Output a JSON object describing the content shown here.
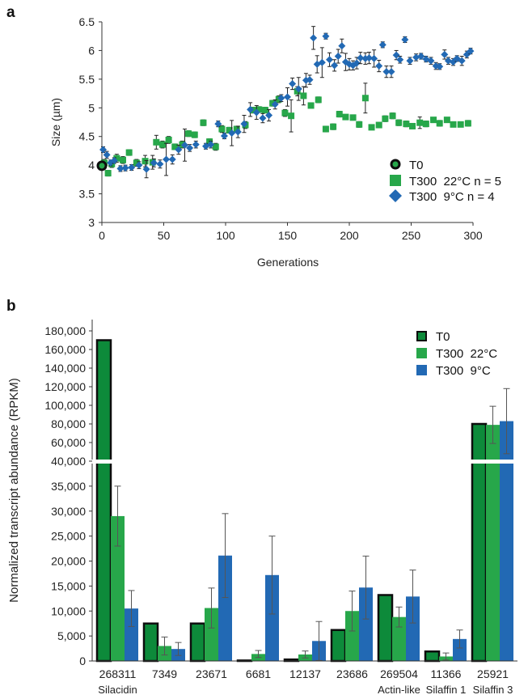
{
  "panel_labels": {
    "a": "a",
    "b": "b"
  },
  "chart_data": [
    {
      "id": "a",
      "type": "scatter",
      "xlabel": "Generations",
      "ylabel": "Size (µm)",
      "xlim": [
        0,
        300
      ],
      "ylim": [
        3,
        6.5
      ],
      "xticks": [
        "0",
        "50",
        "100",
        "150",
        "200",
        "250",
        "300"
      ],
      "yticks": [
        "3",
        "3.5",
        "4",
        "4.5",
        "5",
        "5.5",
        "6",
        "6.5"
      ],
      "legend_position": "right",
      "grid": false,
      "colors": {
        "T0": "#0d0d0d",
        "T300_22": "#27a74a",
        "T300_9": "#2269b4",
        "error": "#222222"
      },
      "series": [
        {
          "name": "T0",
          "marker": "circle",
          "points": [
            {
              "x": 0,
              "y": 3.99,
              "err": 0.03
            }
          ]
        },
        {
          "name": "T300  22°C n = 5",
          "marker": "square",
          "points": [
            {
              "x": 2,
              "y": 4.04,
              "err": 0.06
            },
            {
              "x": 5,
              "y": 3.86,
              "err": 0.05
            },
            {
              "x": 8,
              "y": 4.02,
              "err": 0.06
            },
            {
              "x": 12,
              "y": 4.12,
              "err": 0.07
            },
            {
              "x": 17,
              "y": 4.09,
              "err": 0.06
            },
            {
              "x": 22,
              "y": 4.22,
              "err": 0.05
            },
            {
              "x": 28,
              "y": 4.04,
              "err": 0.06
            },
            {
              "x": 35,
              "y": 4.07,
              "err": 0.1
            },
            {
              "x": 41,
              "y": 4.05,
              "err": 0.12
            },
            {
              "x": 44,
              "y": 4.4,
              "err": 0.12
            },
            {
              "x": 49,
              "y": 4.36,
              "err": 0.06
            },
            {
              "x": 54,
              "y": 4.44,
              "err": 0.06
            },
            {
              "x": 59,
              "y": 4.32,
              "err": 0.05
            },
            {
              "x": 65,
              "y": 4.36,
              "err": 0.06
            },
            {
              "x": 70,
              "y": 4.55,
              "err": 0.05
            },
            {
              "x": 75,
              "y": 4.53,
              "err": 0.05
            },
            {
              "x": 82,
              "y": 4.74,
              "err": 0.05
            },
            {
              "x": 87,
              "y": 4.41,
              "err": 0.05
            },
            {
              "x": 92,
              "y": 4.32,
              "err": 0.06
            },
            {
              "x": 97,
              "y": 4.63,
              "err": 0.06
            },
            {
              "x": 103,
              "y": 4.61,
              "err": 0.05
            },
            {
              "x": 109,
              "y": 4.63,
              "err": 0.05
            },
            {
              "x": 116,
              "y": 4.7,
              "err": 0.06
            },
            {
              "x": 122,
              "y": 4.96,
              "err": 0.05
            },
            {
              "x": 127,
              "y": 4.97,
              "err": 0.05
            },
            {
              "x": 132,
              "y": 4.96,
              "err": 0.05
            },
            {
              "x": 138,
              "y": 5.08,
              "err": 0.05
            },
            {
              "x": 143,
              "y": 5.15,
              "err": 0.06
            },
            {
              "x": 148,
              "y": 4.91,
              "err": 0.06
            },
            {
              "x": 153,
              "y": 4.86,
              "err": 0.28
            },
            {
              "x": 158,
              "y": 5.29,
              "err": 0.08
            },
            {
              "x": 163,
              "y": 5.21,
              "err": 0.16
            },
            {
              "x": 169,
              "y": 5.04,
              "err": 0.04
            },
            {
              "x": 175,
              "y": 5.14,
              "err": 0.05
            },
            {
              "x": 181,
              "y": 4.63,
              "err": 0.05
            },
            {
              "x": 187,
              "y": 4.67,
              "err": 0.05
            },
            {
              "x": 192,
              "y": 4.89,
              "err": 0.05
            },
            {
              "x": 197,
              "y": 4.84,
              "err": 0.04
            },
            {
              "x": 203,
              "y": 4.83,
              "err": 0.04
            },
            {
              "x": 208,
              "y": 4.71,
              "err": 0.05
            },
            {
              "x": 213,
              "y": 5.17,
              "err": 0.26
            },
            {
              "x": 218,
              "y": 4.66,
              "err": 0.04
            },
            {
              "x": 224,
              "y": 4.7,
              "err": 0.04
            },
            {
              "x": 229,
              "y": 4.81,
              "err": 0.05
            },
            {
              "x": 235,
              "y": 4.86,
              "err": 0.05
            },
            {
              "x": 240,
              "y": 4.74,
              "err": 0.05
            },
            {
              "x": 246,
              "y": 4.72,
              "err": 0.05
            },
            {
              "x": 251,
              "y": 4.68,
              "err": 0.04
            },
            {
              "x": 257,
              "y": 4.74,
              "err": 0.1
            },
            {
              "x": 262,
              "y": 4.72,
              "err": 0.05
            },
            {
              "x": 268,
              "y": 4.79,
              "err": 0.04
            },
            {
              "x": 273,
              "y": 4.73,
              "err": 0.05
            },
            {
              "x": 279,
              "y": 4.79,
              "err": 0.04
            },
            {
              "x": 284,
              "y": 4.71,
              "err": 0.04
            },
            {
              "x": 290,
              "y": 4.71,
              "err": 0.04
            },
            {
              "x": 296,
              "y": 4.73,
              "err": 0.05
            }
          ]
        },
        {
          "name": "T300  9°C n = 4",
          "marker": "diamond",
          "points": [
            {
              "x": 1,
              "y": 4.27,
              "err": 0.05
            },
            {
              "x": 4,
              "y": 4.18,
              "err": 0.06
            },
            {
              "x": 7,
              "y": 4.04,
              "err": 0.05
            },
            {
              "x": 10,
              "y": 4.08,
              "err": 0.05
            },
            {
              "x": 15,
              "y": 3.94,
              "err": 0.05
            },
            {
              "x": 19,
              "y": 3.95,
              "err": 0.05
            },
            {
              "x": 24,
              "y": 3.96,
              "err": 0.05
            },
            {
              "x": 30,
              "y": 4.0,
              "err": 0.06
            },
            {
              "x": 36,
              "y": 3.93,
              "err": 0.15
            },
            {
              "x": 42,
              "y": 4.04,
              "err": 0.07
            },
            {
              "x": 47,
              "y": 4.02,
              "err": 0.07
            },
            {
              "x": 52,
              "y": 4.1,
              "err": 0.28
            },
            {
              "x": 57,
              "y": 4.1,
              "err": 0.08
            },
            {
              "x": 62,
              "y": 4.27,
              "err": 0.08
            },
            {
              "x": 67,
              "y": 4.35,
              "err": 0.28
            },
            {
              "x": 71,
              "y": 4.3,
              "err": 0.06
            },
            {
              "x": 76,
              "y": 4.36,
              "err": 0.06
            },
            {
              "x": 84,
              "y": 4.33,
              "err": 0.05
            },
            {
              "x": 88,
              "y": 4.36,
              "err": 0.06
            },
            {
              "x": 94,
              "y": 4.72,
              "err": 0.05
            },
            {
              "x": 99,
              "y": 4.51,
              "err": 0.05
            },
            {
              "x": 105,
              "y": 4.56,
              "err": 0.22
            },
            {
              "x": 110,
              "y": 4.58,
              "err": 0.1
            },
            {
              "x": 115,
              "y": 4.72,
              "err": 0.15
            },
            {
              "x": 120,
              "y": 4.97,
              "err": 0.12
            },
            {
              "x": 125,
              "y": 4.92,
              "err": 0.12
            },
            {
              "x": 130,
              "y": 4.82,
              "err": 0.08
            },
            {
              "x": 135,
              "y": 4.87,
              "err": 0.1
            },
            {
              "x": 140,
              "y": 5.06,
              "err": 0.08
            },
            {
              "x": 145,
              "y": 5.17,
              "err": 0.06
            },
            {
              "x": 150,
              "y": 5.19,
              "err": 0.16
            },
            {
              "x": 154,
              "y": 5.42,
              "err": 0.1
            },
            {
              "x": 159,
              "y": 5.33,
              "err": 0.2
            },
            {
              "x": 165,
              "y": 5.48,
              "err": 0.12
            },
            {
              "x": 168,
              "y": 5.49,
              "err": 0.08
            },
            {
              "x": 171,
              "y": 6.22,
              "err": 0.2
            },
            {
              "x": 174,
              "y": 5.76,
              "err": 0.15
            },
            {
              "x": 178,
              "y": 5.79,
              "err": 0.26
            },
            {
              "x": 181,
              "y": 6.25,
              "err": 0.05
            },
            {
              "x": 184,
              "y": 5.84,
              "err": 0.12
            },
            {
              "x": 188,
              "y": 5.74,
              "err": 0.1
            },
            {
              "x": 191,
              "y": 5.9,
              "err": 0.12
            },
            {
              "x": 194,
              "y": 6.08,
              "err": 0.12
            },
            {
              "x": 197,
              "y": 5.8,
              "err": 0.15
            },
            {
              "x": 200,
              "y": 5.76,
              "err": 0.1
            },
            {
              "x": 203,
              "y": 5.74,
              "err": 0.08
            },
            {
              "x": 206,
              "y": 5.78,
              "err": 0.1
            },
            {
              "x": 209,
              "y": 5.87,
              "err": 0.1
            },
            {
              "x": 213,
              "y": 5.86,
              "err": 0.1
            },
            {
              "x": 216,
              "y": 5.87,
              "err": 0.1
            },
            {
              "x": 220,
              "y": 5.86,
              "err": 0.15
            },
            {
              "x": 224,
              "y": 5.73,
              "err": 0.1
            },
            {
              "x": 227,
              "y": 6.1,
              "err": 0.05
            },
            {
              "x": 230,
              "y": 5.63,
              "err": 0.1
            },
            {
              "x": 234,
              "y": 5.63,
              "err": 0.1
            },
            {
              "x": 238,
              "y": 5.92,
              "err": 0.08
            },
            {
              "x": 241,
              "y": 5.84,
              "err": 0.06
            },
            {
              "x": 245,
              "y": 6.19,
              "err": 0.05
            },
            {
              "x": 249,
              "y": 5.82,
              "err": 0.06
            },
            {
              "x": 254,
              "y": 5.88,
              "err": 0.06
            },
            {
              "x": 258,
              "y": 5.9,
              "err": 0.05
            },
            {
              "x": 262,
              "y": 5.85,
              "err": 0.05
            },
            {
              "x": 266,
              "y": 5.82,
              "err": 0.06
            },
            {
              "x": 270,
              "y": 5.73,
              "err": 0.06
            },
            {
              "x": 273,
              "y": 5.72,
              "err": 0.05
            },
            {
              "x": 277,
              "y": 5.93,
              "err": 0.08
            },
            {
              "x": 280,
              "y": 5.82,
              "err": 0.06
            },
            {
              "x": 284,
              "y": 5.8,
              "err": 0.06
            },
            {
              "x": 287,
              "y": 5.86,
              "err": 0.05
            },
            {
              "x": 291,
              "y": 5.82,
              "err": 0.08
            },
            {
              "x": 295,
              "y": 5.93,
              "err": 0.06
            },
            {
              "x": 298,
              "y": 5.99,
              "err": 0.05
            }
          ]
        }
      ]
    },
    {
      "id": "b",
      "type": "bar",
      "ylabel": "Normalized transcript abundance (RPKM)",
      "ylim": [
        0,
        180000
      ],
      "axis_break": {
        "lower_max": 40000,
        "upper_min": 40000
      },
      "yticks_lower": [
        "0",
        "5,000",
        "10,000",
        "15,000",
        "20,000",
        "25,000",
        "30,000",
        "35,000"
      ],
      "yticks_upper": [
        "40,000",
        "60,000",
        "80,000",
        "100,000",
        "120,000",
        "140,000",
        "160,000",
        "180,000"
      ],
      "categories": [
        "268311",
        "7349",
        "23671",
        "6681",
        "12137",
        "23686",
        "269504",
        "11366",
        "25921"
      ],
      "category_sublabels": [
        "Silacidin",
        "",
        "",
        "",
        "",
        "",
        "Actin-like",
        "Silaffin 1",
        "Silaffin 3"
      ],
      "legend_position": "top-right",
      "grid": false,
      "colors": {
        "T0": "#0d8a3a",
        "T300_22": "#27a74a",
        "T300_9": "#2269b4",
        "T0_edge": "#0d0d0d"
      },
      "series": [
        {
          "name": "T0",
          "values": [
            170000,
            7500,
            7500,
            100,
            300,
            6200,
            13200,
            1900,
            80000
          ],
          "errors": [
            0,
            0,
            0,
            0,
            0,
            0,
            0,
            0,
            0
          ]
        },
        {
          "name": "T300  22°C",
          "values": [
            29000,
            3000,
            10600,
            1400,
            1300,
            10000,
            8800,
            900,
            79000
          ],
          "errors": [
            6000,
            1800,
            4000,
            700,
            700,
            4000,
            2000,
            700,
            20000
          ]
        },
        {
          "name": "T300  9°C",
          "values": [
            10500,
            2400,
            21100,
            17200,
            4000,
            14700,
            12900,
            4400,
            83000
          ],
          "errors": [
            3600,
            1300,
            8400,
            7800,
            3900,
            6300,
            5300,
            1800,
            35000
          ]
        }
      ]
    }
  ]
}
